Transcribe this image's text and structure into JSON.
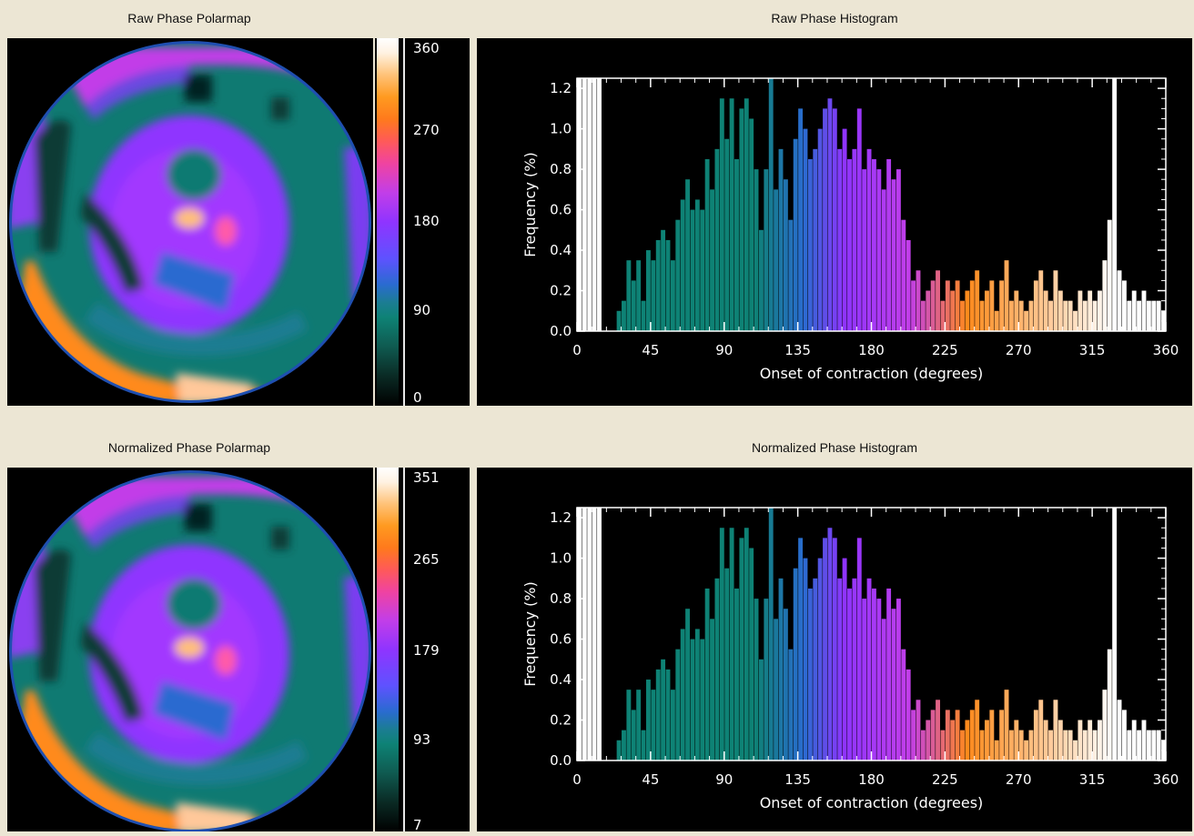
{
  "panels": {
    "raw_polarmap_title": "Raw Phase Polarmap",
    "raw_histogram_title": "Raw Phase Histogram",
    "norm_polarmap_title": "Normalized Phase Polarmap",
    "norm_histogram_title": "Normalized Phase Histogram"
  },
  "raw_colorbar": {
    "labels": [
      "360",
      "270",
      "180",
      "90",
      "0"
    ],
    "min": 0,
    "max": 360
  },
  "norm_colorbar": {
    "labels": [
      "351",
      "265",
      "179",
      "93",
      "7"
    ],
    "min": 7,
    "max": 351
  },
  "colors": {
    "black": "#000000",
    "teal": "#0e8275",
    "blue": "#2a6bd0",
    "violet": "#8f34ff",
    "magenta": "#c23ee8",
    "orange": "#ff8a1c",
    "white": "#ffffff"
  },
  "chart_data": [
    {
      "type": "bar",
      "title": "Raw Phase Histogram",
      "xlabel": "Onset of contraction (degrees)",
      "ylabel": "Frequency (%)",
      "xlim": [
        0,
        360
      ],
      "ylim": [
        0,
        1.25
      ],
      "xticks": [
        "0",
        "45",
        "90",
        "135",
        "180",
        "225",
        "270",
        "315",
        "360"
      ],
      "yticks": [
        "0.0",
        "0.2",
        "0.4",
        "0.6",
        "0.8",
        "1.0",
        "1.2"
      ],
      "x": [
        3,
        6,
        9,
        12,
        15,
        18,
        21,
        24,
        27,
        30,
        33,
        36,
        39,
        42,
        45,
        48,
        51,
        54,
        57,
        60,
        63,
        66,
        69,
        72,
        75,
        78,
        81,
        84,
        87,
        90,
        93,
        96,
        99,
        102,
        105,
        108,
        111,
        114,
        117,
        120,
        123,
        126,
        129,
        132,
        135,
        138,
        141,
        144,
        147,
        150,
        153,
        156,
        159,
        162,
        165,
        168,
        171,
        174,
        177,
        180,
        183,
        186,
        189,
        192,
        195,
        198,
        201,
        204,
        207,
        210,
        213,
        216,
        219,
        222,
        225,
        228,
        231,
        234,
        237,
        240,
        243,
        246,
        249,
        252,
        255,
        258,
        261,
        264,
        267,
        270,
        273,
        276,
        279,
        282,
        285,
        288,
        291,
        294,
        297,
        300,
        303,
        306,
        309,
        312,
        315,
        318,
        321,
        324,
        327,
        330,
        333,
        336,
        339,
        342,
        345,
        348,
        351,
        354,
        357,
        360
      ],
      "values": [
        1.25,
        1.25,
        1.25,
        1.25,
        1.25,
        0,
        0,
        0,
        0.1,
        0.15,
        0.35,
        0.25,
        0.35,
        0.15,
        0.4,
        0.35,
        0.45,
        0.5,
        0.45,
        0.35,
        0.55,
        0.65,
        0.75,
        0.6,
        0.65,
        0.6,
        0.85,
        0.7,
        0.9,
        1.15,
        0.95,
        1.15,
        0.85,
        1.1,
        1.15,
        1.05,
        0.8,
        0.5,
        0.8,
        1.25,
        0.7,
        0.9,
        0.75,
        0.55,
        0.95,
        1.1,
        1.0,
        0.85,
        0.9,
        1.0,
        1.1,
        1.15,
        1.1,
        0.9,
        1.0,
        0.85,
        0.9,
        1.1,
        0.8,
        0.9,
        0.85,
        0.8,
        0.7,
        0.85,
        0.75,
        0.8,
        0.55,
        0.45,
        0.25,
        0.3,
        0.15,
        0.2,
        0.25,
        0.3,
        0.15,
        0.25,
        0.2,
        0.25,
        0.15,
        0.2,
        0.25,
        0.3,
        0.15,
        0.2,
        0.25,
        0.1,
        0.25,
        0.35,
        0.15,
        0.2,
        0.15,
        0.1,
        0.15,
        0.25,
        0.3,
        0.2,
        0.15,
        0.3,
        0.2,
        0.15,
        0.15,
        0.1,
        0.2,
        0.15,
        0.2,
        0.15,
        0.2,
        0.35,
        0.55,
        1.25,
        0.3,
        0.25,
        0.15,
        0.2,
        0.15,
        0.2,
        0.15,
        0.15,
        0.15,
        0.1
      ]
    },
    {
      "type": "bar",
      "title": "Normalized Phase Histogram",
      "xlabel": "Onset of contraction (degrees)",
      "ylabel": "Frequency (%)",
      "xlim": [
        0,
        360
      ],
      "ylim": [
        0,
        1.25
      ],
      "xticks": [
        "0",
        "45",
        "90",
        "135",
        "180",
        "225",
        "270",
        "315",
        "360"
      ],
      "yticks": [
        "0.0",
        "0.2",
        "0.4",
        "0.6",
        "0.8",
        "1.0",
        "1.2"
      ],
      "x": [
        3,
        6,
        9,
        12,
        15,
        18,
        21,
        24,
        27,
        30,
        33,
        36,
        39,
        42,
        45,
        48,
        51,
        54,
        57,
        60,
        63,
        66,
        69,
        72,
        75,
        78,
        81,
        84,
        87,
        90,
        93,
        96,
        99,
        102,
        105,
        108,
        111,
        114,
        117,
        120,
        123,
        126,
        129,
        132,
        135,
        138,
        141,
        144,
        147,
        150,
        153,
        156,
        159,
        162,
        165,
        168,
        171,
        174,
        177,
        180,
        183,
        186,
        189,
        192,
        195,
        198,
        201,
        204,
        207,
        210,
        213,
        216,
        219,
        222,
        225,
        228,
        231,
        234,
        237,
        240,
        243,
        246,
        249,
        252,
        255,
        258,
        261,
        264,
        267,
        270,
        273,
        276,
        279,
        282,
        285,
        288,
        291,
        294,
        297,
        300,
        303,
        306,
        309,
        312,
        315,
        318,
        321,
        324,
        327,
        330,
        333,
        336,
        339,
        342,
        345,
        348,
        351,
        354,
        357,
        360
      ],
      "values": [
        1.25,
        1.25,
        1.25,
        1.25,
        1.25,
        0,
        0,
        0,
        0.1,
        0.15,
        0.35,
        0.25,
        0.35,
        0.15,
        0.4,
        0.35,
        0.45,
        0.5,
        0.45,
        0.35,
        0.55,
        0.65,
        0.75,
        0.6,
        0.65,
        0.6,
        0.85,
        0.7,
        0.9,
        1.15,
        0.95,
        1.15,
        0.85,
        1.1,
        1.15,
        1.05,
        0.8,
        0.5,
        0.8,
        1.25,
        0.7,
        0.9,
        0.75,
        0.55,
        0.95,
        1.1,
        1.0,
        0.85,
        0.9,
        1.0,
        1.1,
        1.15,
        1.1,
        0.9,
        1.0,
        0.85,
        0.9,
        1.1,
        0.8,
        0.9,
        0.85,
        0.8,
        0.7,
        0.85,
        0.75,
        0.8,
        0.55,
        0.45,
        0.25,
        0.3,
        0.15,
        0.2,
        0.25,
        0.3,
        0.15,
        0.25,
        0.2,
        0.25,
        0.15,
        0.2,
        0.25,
        0.3,
        0.15,
        0.2,
        0.25,
        0.1,
        0.25,
        0.35,
        0.15,
        0.2,
        0.15,
        0.1,
        0.15,
        0.25,
        0.3,
        0.2,
        0.15,
        0.3,
        0.2,
        0.15,
        0.15,
        0.1,
        0.2,
        0.15,
        0.2,
        0.15,
        0.2,
        0.35,
        0.55,
        1.25,
        0.3,
        0.25,
        0.15,
        0.2,
        0.15,
        0.2,
        0.15,
        0.15,
        0.15,
        0.1
      ]
    }
  ]
}
